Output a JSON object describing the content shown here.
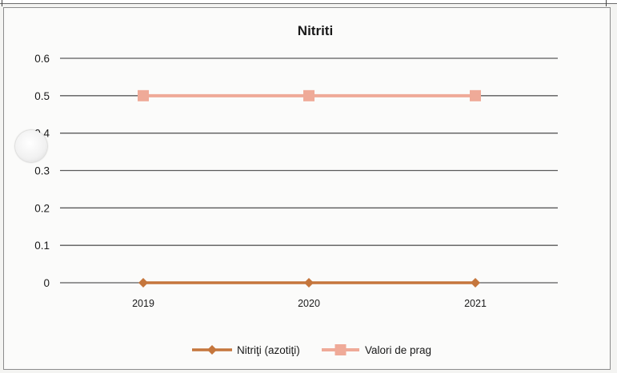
{
  "chart_data": {
    "type": "line",
    "title": "Nitriti",
    "categories": [
      "2019",
      "2020",
      "2021"
    ],
    "y_ticks": [
      "0",
      "0.1",
      "0.2",
      "0.3",
      "0.4",
      "0.5",
      "0.6"
    ],
    "ylim": [
      0,
      0.6
    ],
    "grid": true,
    "legend_position": "bottom",
    "series": [
      {
        "name": "Nitriţi (azotiţi)",
        "values": [
          0,
          0,
          0
        ],
        "color": "#c5763c",
        "marker": "diamond"
      },
      {
        "name": "Valori de prag",
        "values": [
          0.5,
          0.5,
          0.5
        ],
        "color": "#efaa98",
        "marker": "square"
      }
    ]
  }
}
